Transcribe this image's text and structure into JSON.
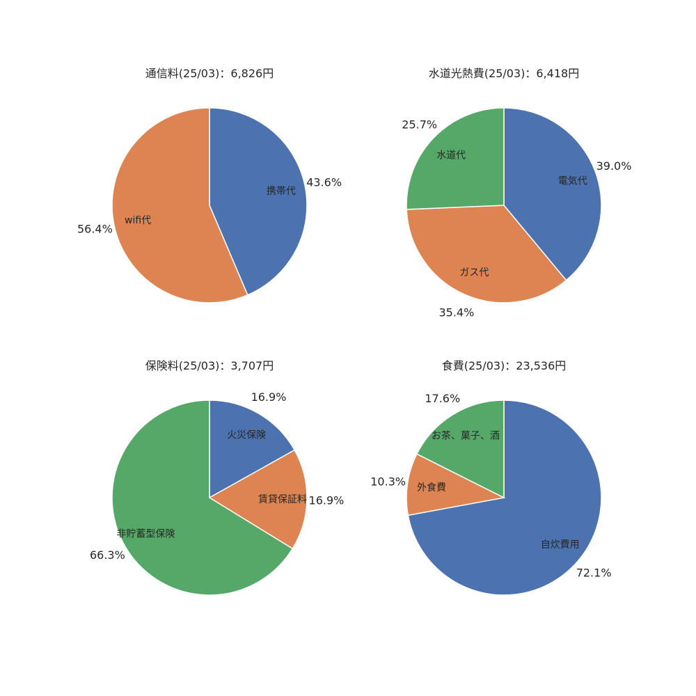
{
  "chart_data": [
    {
      "type": "pie",
      "title": "通信料(25/03)：6,826円",
      "labels": [
        "携帯代",
        "wifi代"
      ],
      "values": [
        43.6,
        56.4
      ],
      "pct_labels": [
        "43.6%",
        "56.4%"
      ],
      "colors": [
        "#4c72b0",
        "#dd8452"
      ]
    },
    {
      "type": "pie",
      "title": "水道光熱費(25/03)：6,418円",
      "labels": [
        "電気代",
        "ガス代",
        "水道代"
      ],
      "values": [
        39.0,
        35.4,
        25.7
      ],
      "pct_labels": [
        "39.0%",
        "35.4%",
        "25.7%"
      ],
      "colors": [
        "#4c72b0",
        "#dd8452",
        "#55a868"
      ]
    },
    {
      "type": "pie",
      "title": "保険料(25/03)：3,707円",
      "labels": [
        "火災保険",
        "賃貸保証料",
        "非貯蓄型保険"
      ],
      "values": [
        16.9,
        16.9,
        66.3
      ],
      "pct_labels": [
        "16.9%",
        "16.9%",
        "66.3%"
      ],
      "colors": [
        "#4c72b0",
        "#dd8452",
        "#55a868"
      ]
    },
    {
      "type": "pie",
      "title": "食費(25/03)：23,536円",
      "labels": [
        "自炊費用",
        "外食費",
        "お茶、菓子、酒"
      ],
      "values": [
        72.1,
        10.3,
        17.6
      ],
      "pct_labels": [
        "72.1%",
        "10.3%",
        "17.6%"
      ],
      "colors": [
        "#4c72b0",
        "#dd8452",
        "#55a868"
      ]
    }
  ]
}
